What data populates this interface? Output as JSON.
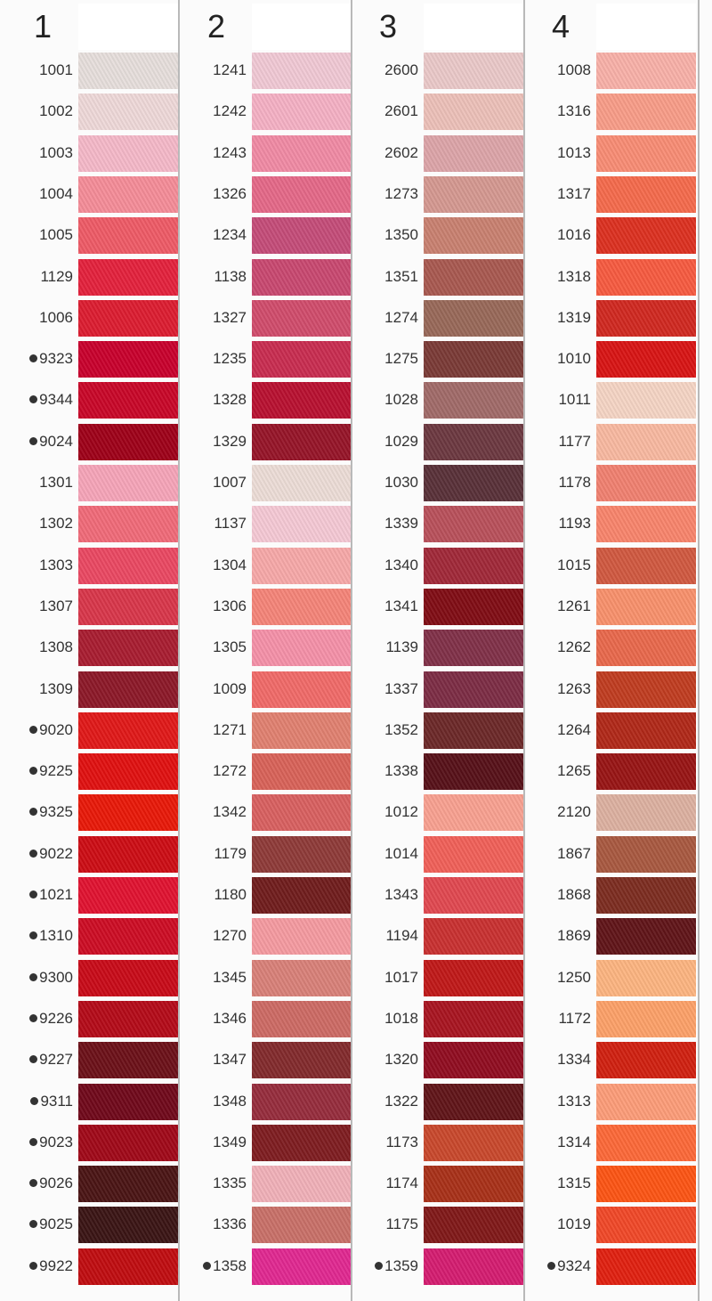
{
  "columns": [
    {
      "number": "1",
      "threads": [
        {
          "code": "1001",
          "color": "#e6dedb",
          "marked": false
        },
        {
          "code": "1002",
          "color": "#eed8d8",
          "marked": false
        },
        {
          "code": "1003",
          "color": "#f4b8c8",
          "marked": false
        },
        {
          "code": "1004",
          "color": "#f48c98",
          "marked": false
        },
        {
          "code": "1005",
          "color": "#ee5a66",
          "marked": false
        },
        {
          "code": "1129",
          "color": "#e3213c",
          "marked": false
        },
        {
          "code": "1006",
          "color": "#dc1c30",
          "marked": false
        },
        {
          "code": "9323",
          "color": "#c8002c",
          "marked": true
        },
        {
          "code": "9344",
          "color": "#c80628",
          "marked": true
        },
        {
          "code": "9024",
          "color": "#9e0018",
          "marked": true
        },
        {
          "code": "1301",
          "color": "#f5a4b8",
          "marked": false
        },
        {
          "code": "1302",
          "color": "#f06a78",
          "marked": false
        },
        {
          "code": "1303",
          "color": "#ea4862",
          "marked": false
        },
        {
          "code": "1307",
          "color": "#d8364a",
          "marked": false
        },
        {
          "code": "1308",
          "color": "#a81c30",
          "marked": false
        },
        {
          "code": "1309",
          "color": "#8c1828",
          "marked": false
        },
        {
          "code": "9020",
          "color": "#e01818",
          "marked": true
        },
        {
          "code": "9225",
          "color": "#e01010",
          "marked": true
        },
        {
          "code": "9325",
          "color": "#e81808",
          "marked": true
        },
        {
          "code": "9022",
          "color": "#cc0c14",
          "marked": true
        },
        {
          "code": "1021",
          "color": "#e01230",
          "marked": true
        },
        {
          "code": "1310",
          "color": "#cc0c24",
          "marked": true
        },
        {
          "code": "9300",
          "color": "#c80a18",
          "marked": true
        },
        {
          "code": "9226",
          "color": "#b40a18",
          "marked": true
        },
        {
          "code": "9227",
          "color": "#6c1018",
          "marked": true
        },
        {
          "code": "9311",
          "color": "#70081a",
          "marked": true
        },
        {
          "code": "9023",
          "color": "#a00818",
          "marked": true
        },
        {
          "code": "9026",
          "color": "#4a1414",
          "marked": true
        },
        {
          "code": "9025",
          "color": "#3a1414",
          "marked": true
        },
        {
          "code": "9922",
          "color": "#c00c10",
          "marked": true
        }
      ]
    },
    {
      "number": "2",
      "threads": [
        {
          "code": "1241",
          "color": "#f0c8d4",
          "marked": false
        },
        {
          "code": "1242",
          "color": "#f4b0c4",
          "marked": false
        },
        {
          "code": "1243",
          "color": "#f08aa4",
          "marked": false
        },
        {
          "code": "1326",
          "color": "#e46888",
          "marked": false
        },
        {
          "code": "1234",
          "color": "#c44c78",
          "marked": false
        },
        {
          "code": "1138",
          "color": "#c84870",
          "marked": false
        },
        {
          "code": "1327",
          "color": "#d04c6c",
          "marked": false
        },
        {
          "code": "1235",
          "color": "#c82c50",
          "marked": false
        },
        {
          "code": "1328",
          "color": "#b81030",
          "marked": false
        },
        {
          "code": "1329",
          "color": "#961428",
          "marked": false
        },
        {
          "code": "1007",
          "color": "#ecdcd6",
          "marked": false
        },
        {
          "code": "1137",
          "color": "#f4c8d4",
          "marked": false
        },
        {
          "code": "1304",
          "color": "#f6a8a8",
          "marked": false
        },
        {
          "code": "1306",
          "color": "#f48478",
          "marked": false
        },
        {
          "code": "1305",
          "color": "#f490a8",
          "marked": false
        },
        {
          "code": "1009",
          "color": "#f06a68",
          "marked": false
        },
        {
          "code": "1271",
          "color": "#e08070",
          "marked": false
        },
        {
          "code": "1272",
          "color": "#d86258",
          "marked": false
        },
        {
          "code": "1342",
          "color": "#d86060",
          "marked": false
        },
        {
          "code": "1179",
          "color": "#8e3a38",
          "marked": false
        },
        {
          "code": "1180",
          "color": "#701c1c",
          "marked": false
        },
        {
          "code": "1270",
          "color": "#f49aa0",
          "marked": false
        },
        {
          "code": "1345",
          "color": "#d88078",
          "marked": false
        },
        {
          "code": "1346",
          "color": "#cc6a64",
          "marked": false
        },
        {
          "code": "1347",
          "color": "#822a2c",
          "marked": false
        },
        {
          "code": "1348",
          "color": "#962c3c",
          "marked": false
        },
        {
          "code": "1349",
          "color": "#7e1c20",
          "marked": false
        },
        {
          "code": "1335",
          "color": "#f0b0b8",
          "marked": false
        },
        {
          "code": "1336",
          "color": "#c87068",
          "marked": false
        },
        {
          "code": "1358",
          "color": "#e02890",
          "marked": true
        }
      ]
    },
    {
      "number": "3",
      "threads": [
        {
          "code": "2600",
          "color": "#eac8c8",
          "marked": false
        },
        {
          "code": "2601",
          "color": "#ecc0b8",
          "marked": false
        },
        {
          "code": "2602",
          "color": "#dca4a8",
          "marked": false
        },
        {
          "code": "1273",
          "color": "#d49890",
          "marked": false
        },
        {
          "code": "1350",
          "color": "#c88070",
          "marked": false
        },
        {
          "code": "1351",
          "color": "#a85850",
          "marked": false
        },
        {
          "code": "1274",
          "color": "#986858",
          "marked": false
        },
        {
          "code": "1275",
          "color": "#7a3a36",
          "marked": false
        },
        {
          "code": "1028",
          "color": "#a06a68",
          "marked": false
        },
        {
          "code": "1029",
          "color": "#6c3840",
          "marked": false
        },
        {
          "code": "1030",
          "color": "#583038",
          "marked": false
        },
        {
          "code": "1339",
          "color": "#b8505a",
          "marked": false
        },
        {
          "code": "1340",
          "color": "#a02838",
          "marked": false
        },
        {
          "code": "1341",
          "color": "#800c14",
          "marked": false
        },
        {
          "code": "1139",
          "color": "#803048",
          "marked": false
        },
        {
          "code": "1337",
          "color": "#7c2c44",
          "marked": false
        },
        {
          "code": "1352",
          "color": "#6c2828",
          "marked": false
        },
        {
          "code": "1338",
          "color": "#561018",
          "marked": false
        },
        {
          "code": "1012",
          "color": "#f8a090",
          "marked": false
        },
        {
          "code": "1014",
          "color": "#f06058",
          "marked": false
        },
        {
          "code": "1343",
          "color": "#e04850",
          "marked": false
        },
        {
          "code": "1194",
          "color": "#c83030",
          "marked": false
        },
        {
          "code": "1017",
          "color": "#c01818",
          "marked": false
        },
        {
          "code": "1018",
          "color": "#a81420",
          "marked": false
        },
        {
          "code": "1320",
          "color": "#900c20",
          "marked": false
        },
        {
          "code": "1322",
          "color": "#601418",
          "marked": false
        },
        {
          "code": "1173",
          "color": "#c8482c",
          "marked": false
        },
        {
          "code": "1174",
          "color": "#a83018",
          "marked": false
        },
        {
          "code": "1175",
          "color": "#801818",
          "marked": false
        },
        {
          "code": "1359",
          "color": "#d41c70",
          "marked": true
        }
      ]
    },
    {
      "number": "4",
      "threads": [
        {
          "code": "1008",
          "color": "#f8b0a8",
          "marked": false
        },
        {
          "code": "1316",
          "color": "#f89c88",
          "marked": false
        },
        {
          "code": "1013",
          "color": "#f88c74",
          "marked": false
        },
        {
          "code": "1317",
          "color": "#f46a4c",
          "marked": false
        },
        {
          "code": "1016",
          "color": "#dc3020",
          "marked": false
        },
        {
          "code": "1318",
          "color": "#f65a40",
          "marked": false
        },
        {
          "code": "1319",
          "color": "#d02820",
          "marked": false
        },
        {
          "code": "1010",
          "color": "#d81414",
          "marked": false
        },
        {
          "code": "1011",
          "color": "#f4d4c4",
          "marked": false
        },
        {
          "code": "1177",
          "color": "#f8b8a0",
          "marked": false
        },
        {
          "code": "1178",
          "color": "#f08070",
          "marked": false
        },
        {
          "code": "1193",
          "color": "#f8846c",
          "marked": false
        },
        {
          "code": "1015",
          "color": "#d05840",
          "marked": false
        },
        {
          "code": "1261",
          "color": "#f8906c",
          "marked": false
        },
        {
          "code": "1262",
          "color": "#e8684c",
          "marked": false
        },
        {
          "code": "1263",
          "color": "#c03c20",
          "marked": false
        },
        {
          "code": "1264",
          "color": "#b02818",
          "marked": false
        },
        {
          "code": "1265",
          "color": "#981414",
          "marked": false
        },
        {
          "code": "2120",
          "color": "#dcb0a0",
          "marked": false
        },
        {
          "code": "1867",
          "color": "#a85840",
          "marked": false
        },
        {
          "code": "1868",
          "color": "#7c2c20",
          "marked": false
        },
        {
          "code": "1869",
          "color": "#601418",
          "marked": false
        },
        {
          "code": "1250",
          "color": "#fcb480",
          "marked": false
        },
        {
          "code": "1172",
          "color": "#fca068",
          "marked": false
        },
        {
          "code": "1334",
          "color": "#d02010",
          "marked": false
        },
        {
          "code": "1313",
          "color": "#fc9c78",
          "marked": false
        },
        {
          "code": "1314",
          "color": "#fc6838",
          "marked": false
        },
        {
          "code": "1315",
          "color": "#fc5414",
          "marked": false
        },
        {
          "code": "1019",
          "color": "#f04828",
          "marked": false
        },
        {
          "code": "9324",
          "color": "#e02010",
          "marked": true
        }
      ]
    }
  ]
}
